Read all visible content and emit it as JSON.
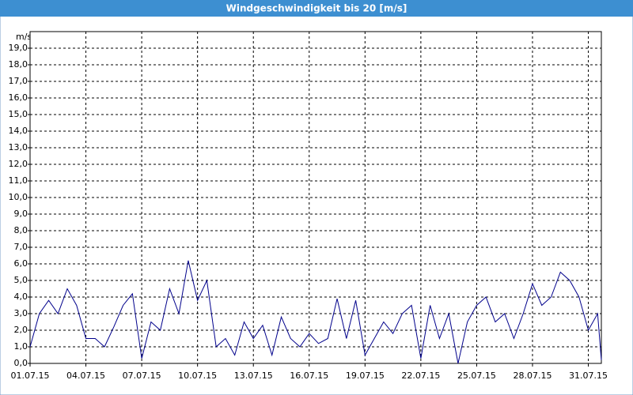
{
  "chart_data": {
    "type": "line",
    "title": "Windgeschwindigkeit bis 20 [m/s]",
    "y_label": "m/s",
    "x": [
      0,
      0.5,
      1,
      1.5,
      2,
      2.5,
      3,
      3.5,
      4,
      4.5,
      5,
      5.5,
      6,
      6.5,
      7,
      7.5,
      8,
      8.5,
      9,
      9.5,
      10,
      10.5,
      11,
      11.5,
      12,
      12.5,
      13,
      13.5,
      14,
      14.5,
      15,
      15.5,
      16,
      16.5,
      17,
      17.5,
      18,
      18.5,
      19,
      19.5,
      20,
      20.5,
      21,
      21.5,
      22,
      22.5,
      23,
      23.5,
      24,
      24.5,
      25,
      25.5,
      26,
      26.5,
      27,
      27.5,
      28,
      28.5,
      29,
      29.5,
      30,
      30.5,
      30.7
    ],
    "series": [
      {
        "name": "Windgeschwindigkeit",
        "color": "#00008b",
        "values": [
          1.0,
          3.0,
          3.8,
          3.0,
          4.5,
          3.5,
          1.5,
          1.5,
          1.0,
          2.2,
          3.5,
          4.2,
          0.3,
          2.5,
          2.0,
          4.5,
          3.0,
          6.2,
          3.8,
          5.0,
          1.0,
          1.5,
          0.5,
          2.5,
          1.5,
          2.3,
          0.5,
          2.8,
          1.5,
          1.0,
          1.8,
          1.2,
          1.5,
          3.9,
          1.5,
          3.8,
          0.5,
          1.5,
          2.5,
          1.8,
          3.0,
          3.5,
          0.3,
          3.5,
          1.5,
          3.0,
          0,
          2.5,
          3.5,
          4.0,
          2.5,
          3.0,
          1.5,
          3.0,
          4.8,
          3.5,
          4.0,
          5.5,
          5.0,
          4.0,
          2.0,
          3.0,
          0.2
        ]
      }
    ],
    "xlim": [
      0,
      30.7
    ],
    "xticks": [
      {
        "value": 0,
        "label": "01.07.15"
      },
      {
        "value": 3,
        "label": "04.07.15"
      },
      {
        "value": 6,
        "label": "07.07.15"
      },
      {
        "value": 9,
        "label": "10.07.15"
      },
      {
        "value": 12,
        "label": "13.07.15"
      },
      {
        "value": 15,
        "label": "16.07.15"
      },
      {
        "value": 18,
        "label": "19.07.15"
      },
      {
        "value": 21,
        "label": "22.07.15"
      },
      {
        "value": 24,
        "label": "25.07.15"
      },
      {
        "value": 27,
        "label": "28.07.15"
      },
      {
        "value": 30,
        "label": "31.07.15"
      }
    ],
    "ylim": [
      0,
      20
    ],
    "yticks": [
      {
        "value": 0,
        "label": "0,0"
      },
      {
        "value": 1,
        "label": "1,0"
      },
      {
        "value": 2,
        "label": "2,0"
      },
      {
        "value": 3,
        "label": "3,0"
      },
      {
        "value": 4,
        "label": "4,0"
      },
      {
        "value": 5,
        "label": "5,0"
      },
      {
        "value": 6,
        "label": "6,0"
      },
      {
        "value": 7,
        "label": "7,0"
      },
      {
        "value": 8,
        "label": "8,0"
      },
      {
        "value": 9,
        "label": "9,0"
      },
      {
        "value": 10,
        "label": "10,0"
      },
      {
        "value": 11,
        "label": "11,0"
      },
      {
        "value": 12,
        "label": "12,0"
      },
      {
        "value": 13,
        "label": "13,0"
      },
      {
        "value": 14,
        "label": "14,0"
      },
      {
        "value": 15,
        "label": "15,0"
      },
      {
        "value": 16,
        "label": "16,0"
      },
      {
        "value": 17,
        "label": "17,0"
      },
      {
        "value": 18,
        "label": "18,0"
      },
      {
        "value": 19,
        "label": "19,0"
      }
    ],
    "grid": true
  }
}
